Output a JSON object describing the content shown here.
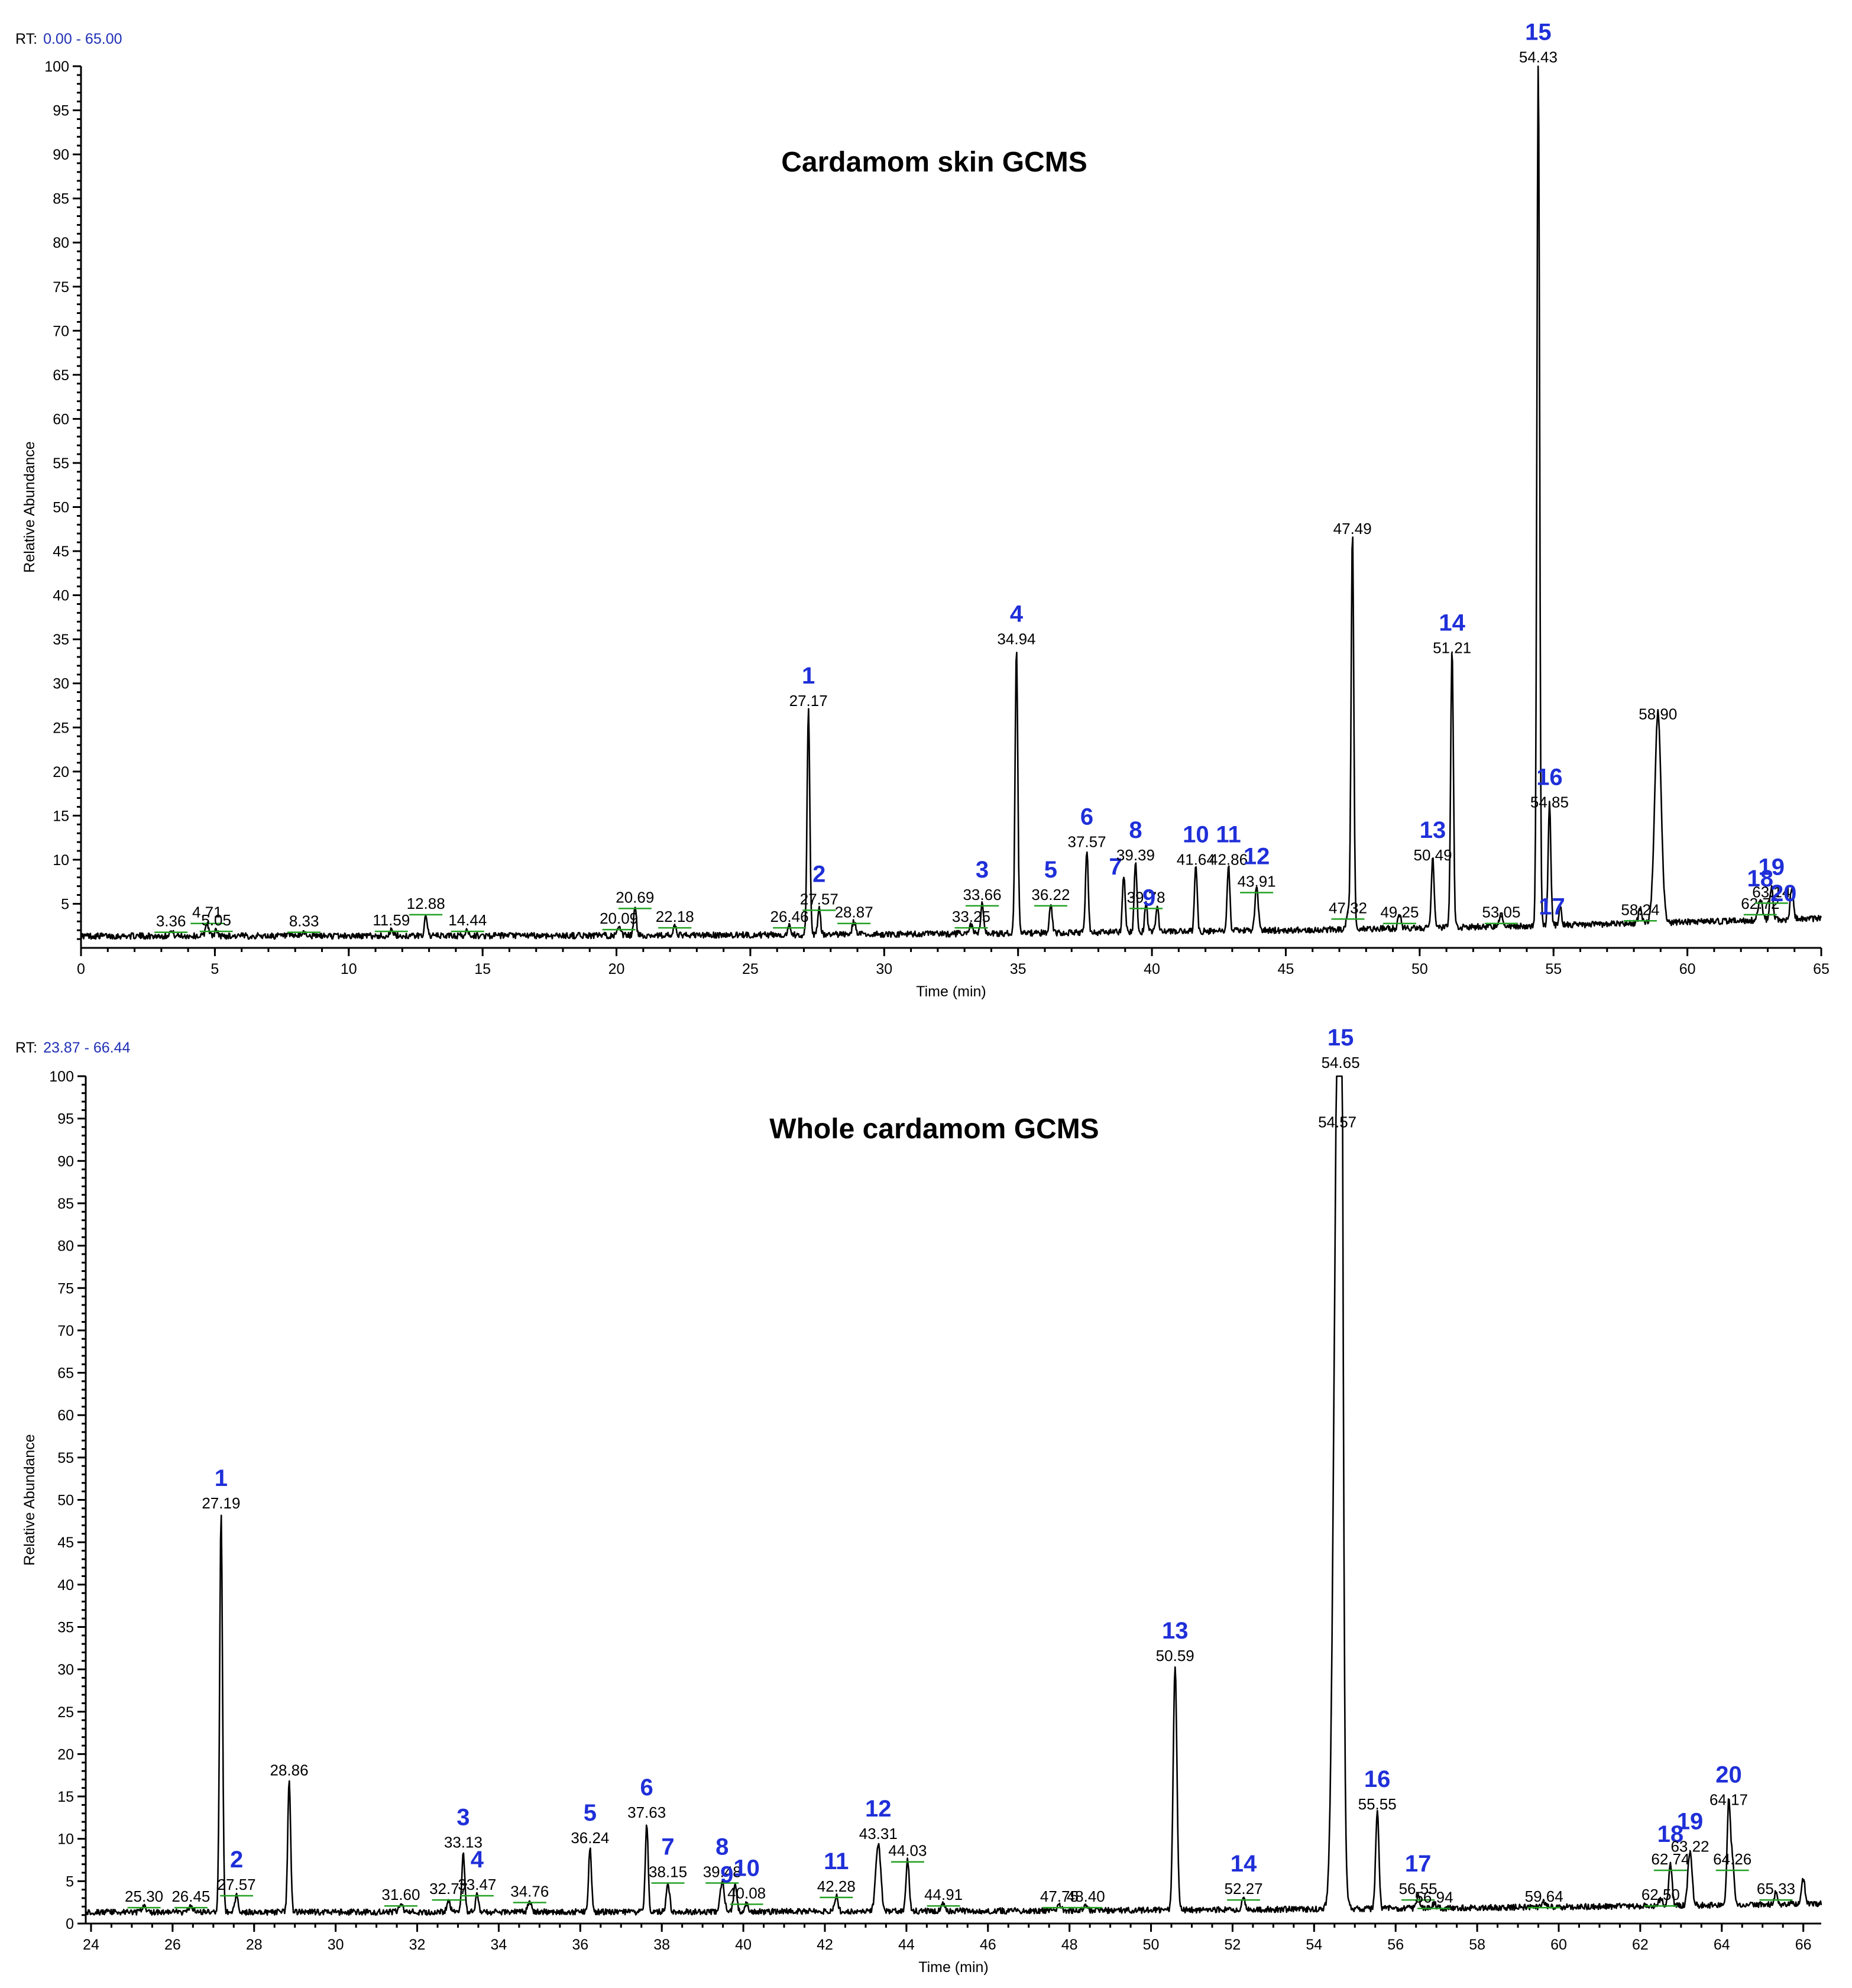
{
  "chart_data": [
    {
      "type": "line",
      "rt_label": "RT:",
      "rt_range": "0.00 - 65.00",
      "title": "Cardamom skin GCMS",
      "xlabel": "Time (min)",
      "ylabel": "Relative Abundance",
      "xlim": [
        0,
        65
      ],
      "ylim": [
        0,
        100
      ],
      "xticks": [
        "0",
        "5",
        "10",
        "15",
        "20",
        "25",
        "30",
        "35",
        "40",
        "45",
        "50",
        "55",
        "60",
        "65"
      ],
      "yticks": [
        "5",
        "10",
        "15",
        "20",
        "25",
        "30",
        "35",
        "40",
        "45",
        "50",
        "55",
        "60",
        "65",
        "70",
        "75",
        "80",
        "85",
        "90",
        "95",
        "100"
      ],
      "baseline": 1,
      "tail": 3.0,
      "peaks": [
        {
          "rt": 3.36,
          "label": "3.36",
          "h": 0.5,
          "w": 0.08,
          "num": ""
        },
        {
          "rt": 4.71,
          "label": "4.71",
          "h": 1.5,
          "w": 0.06,
          "num": ""
        },
        {
          "rt": 5.05,
          "label": "5.05",
          "h": 0.6,
          "w": 0.06,
          "num": ""
        },
        {
          "rt": 8.33,
          "label": "8.33",
          "h": 0.5,
          "w": 0.06,
          "num": ""
        },
        {
          "rt": 11.59,
          "label": "11.59",
          "h": 0.6,
          "w": 0.06,
          "num": ""
        },
        {
          "rt": 12.88,
          "label": "12.88",
          "h": 2.5,
          "w": 0.05,
          "num": ""
        },
        {
          "rt": 14.44,
          "label": "14.44",
          "h": 0.6,
          "w": 0.06,
          "num": ""
        },
        {
          "rt": 20.09,
          "label": "20.09",
          "h": 0.8,
          "w": 0.06,
          "num": ""
        },
        {
          "rt": 20.69,
          "label": "20.69",
          "h": 3.2,
          "w": 0.05,
          "num": ""
        },
        {
          "rt": 22.18,
          "label": "22.18",
          "h": 1.0,
          "w": 0.05,
          "num": ""
        },
        {
          "rt": 26.46,
          "label": "26.46",
          "h": 1.0,
          "w": 0.06,
          "num": ""
        },
        {
          "rt": 27.17,
          "label": "27.17",
          "h": 25.5,
          "w": 0.05,
          "num": "1"
        },
        {
          "rt": 27.57,
          "label": "27.57",
          "h": 3.0,
          "w": 0.05,
          "num": "2"
        },
        {
          "rt": 28.87,
          "label": "28.87",
          "h": 1.5,
          "w": 0.06,
          "num": ""
        },
        {
          "rt": 33.25,
          "label": "33.25",
          "h": 1.0,
          "w": 0.06,
          "num": ""
        },
        {
          "rt": 33.66,
          "label": "33.66",
          "h": 3.5,
          "w": 0.05,
          "num": "3"
        },
        {
          "rt": 34.94,
          "label": "34.94",
          "h": 32.5,
          "w": 0.05,
          "num": "4"
        },
        {
          "rt": 36.22,
          "label": "36.22",
          "h": 3.5,
          "w": 0.05,
          "num": "5"
        },
        {
          "rt": 37.57,
          "label": "37.57",
          "h": 9.5,
          "w": 0.05,
          "num": "6"
        },
        {
          "rt": 38.95,
          "label": "",
          "h": 6.5,
          "w": 0.05,
          "num": "7"
        },
        {
          "rt": 39.39,
          "label": "39.39",
          "h": 8.0,
          "w": 0.05,
          "num": "8"
        },
        {
          "rt": 39.78,
          "label": "39.78",
          "h": 3.2,
          "w": 0.05,
          "num": ""
        },
        {
          "rt": 40.2,
          "label": "",
          "h": 3.0,
          "w": 0.05,
          "num": "9"
        },
        {
          "rt": 41.64,
          "label": "41.64",
          "h": 7.5,
          "w": 0.05,
          "num": "10"
        },
        {
          "rt": 42.86,
          "label": "42.86",
          "h": 7.5,
          "w": 0.05,
          "num": "11"
        },
        {
          "rt": 43.91,
          "label": "43.91",
          "h": 5.0,
          "w": 0.06,
          "num": "12"
        },
        {
          "rt": 47.32,
          "label": "47.32",
          "h": 2.0,
          "w": 0.06,
          "num": ""
        },
        {
          "rt": 47.49,
          "label": "47.49",
          "h": 45.0,
          "w": 0.05,
          "num": ""
        },
        {
          "rt": 49.25,
          "label": "49.25",
          "h": 1.5,
          "w": 0.06,
          "num": ""
        },
        {
          "rt": 50.49,
          "label": "50.49",
          "h": 8.0,
          "w": 0.05,
          "num": "13"
        },
        {
          "rt": 51.21,
          "label": "51.21",
          "h": 31.5,
          "w": 0.05,
          "num": "14"
        },
        {
          "rt": 53.05,
          "label": "53.05",
          "h": 1.5,
          "w": 0.06,
          "num": ""
        },
        {
          "rt": 54.43,
          "label": "54.43",
          "h": 98.5,
          "w": 0.05,
          "num": "15"
        },
        {
          "rt": 54.85,
          "label": "54.85",
          "h": 14.0,
          "w": 0.05,
          "num": "16"
        },
        {
          "rt": 55.25,
          "label": "",
          "h": 2.0,
          "w": 0.05,
          "num": "17"
        },
        {
          "rt": 58.24,
          "label": "58.24",
          "h": 1.8,
          "w": 0.06,
          "num": ""
        },
        {
          "rt": 58.9,
          "label": "58.90",
          "h": 24.0,
          "w": 0.12,
          "num": ""
        },
        {
          "rt": 62.72,
          "label": "62.72",
          "h": 2.5,
          "w": 0.08,
          "num": "18"
        },
        {
          "rt": 63.14,
          "label": "63.14",
          "h": 3.8,
          "w": 0.06,
          "num": "19"
        },
        {
          "rt": 63.9,
          "label": "",
          "h": 3.5,
          "w": 0.06,
          "num": "20"
        }
      ]
    },
    {
      "type": "line",
      "rt_label": "RT:",
      "rt_range": "23.87 - 66.44",
      "title": "Whole cardamom GCMS",
      "xlabel": "Time (min)",
      "ylabel": "Relative Abundance",
      "xlim": [
        23.87,
        66.44
      ],
      "ylim": [
        0,
        100
      ],
      "xticks": [
        "24",
        "26",
        "28",
        "30",
        "32",
        "34",
        "36",
        "38",
        "40",
        "42",
        "44",
        "46",
        "48",
        "50",
        "52",
        "54",
        "56",
        "58",
        "60",
        "62",
        "64",
        "66"
      ],
      "yticks": [
        "0",
        "5",
        "10",
        "15",
        "20",
        "25",
        "30",
        "35",
        "40",
        "45",
        "50",
        "55",
        "60",
        "65",
        "70",
        "75",
        "80",
        "85",
        "90",
        "95",
        "100"
      ],
      "baseline": 1,
      "tail": 2.0,
      "peaks": [
        {
          "rt": 25.3,
          "label": "25.30",
          "h": 0.6,
          "w": 0.05,
          "num": ""
        },
        {
          "rt": 26.45,
          "label": "26.45",
          "h": 0.6,
          "w": 0.05,
          "num": ""
        },
        {
          "rt": 27.19,
          "label": "27.19",
          "h": 47.0,
          "w": 0.035,
          "num": "1"
        },
        {
          "rt": 27.57,
          "label": "27.57",
          "h": 2.0,
          "w": 0.04,
          "num": "2"
        },
        {
          "rt": 28.86,
          "label": "28.86",
          "h": 15.5,
          "w": 0.035,
          "num": ""
        },
        {
          "rt": 31.6,
          "label": "31.60",
          "h": 0.8,
          "w": 0.05,
          "num": ""
        },
        {
          "rt": 32.77,
          "label": "32.77",
          "h": 1.5,
          "w": 0.04,
          "num": ""
        },
        {
          "rt": 33.13,
          "label": "33.13",
          "h": 7.0,
          "w": 0.035,
          "num": "3"
        },
        {
          "rt": 33.47,
          "label": "33.47",
          "h": 2.0,
          "w": 0.04,
          "num": "4"
        },
        {
          "rt": 34.76,
          "label": "34.76",
          "h": 1.2,
          "w": 0.04,
          "num": ""
        },
        {
          "rt": 36.24,
          "label": "36.24",
          "h": 7.5,
          "w": 0.035,
          "num": "5"
        },
        {
          "rt": 37.63,
          "label": "37.63",
          "h": 10.5,
          "w": 0.035,
          "num": "6"
        },
        {
          "rt": 38.15,
          "label": "38.15",
          "h": 3.5,
          "w": 0.04,
          "num": "7"
        },
        {
          "rt": 39.48,
          "label": "39.48",
          "h": 3.5,
          "w": 0.05,
          "num": "8"
        },
        {
          "rt": 39.8,
          "label": "",
          "h": 3.0,
          "w": 0.04,
          "num": "9"
        },
        {
          "rt": 40.08,
          "label": "40.08",
          "h": 1.0,
          "w": 0.04,
          "num": "10"
        },
        {
          "rt": 42.28,
          "label": "42.28",
          "h": 1.8,
          "w": 0.04,
          "num": "11"
        },
        {
          "rt": 43.31,
          "label": "43.31",
          "h": 8.0,
          "w": 0.06,
          "num": "12"
        },
        {
          "rt": 44.03,
          "label": "44.03",
          "h": 6.0,
          "w": 0.04,
          "num": ""
        },
        {
          "rt": 44.91,
          "label": "44.91",
          "h": 0.8,
          "w": 0.05,
          "num": ""
        },
        {
          "rt": 47.75,
          "label": "47.75",
          "h": 0.6,
          "w": 0.05,
          "num": ""
        },
        {
          "rt": 48.4,
          "label": "48.40",
          "h": 0.6,
          "w": 0.05,
          "num": ""
        },
        {
          "rt": 50.59,
          "label": "50.59",
          "h": 29.0,
          "w": 0.045,
          "num": "13"
        },
        {
          "rt": 52.27,
          "label": "52.27",
          "h": 1.5,
          "w": 0.04,
          "num": "14"
        },
        {
          "rt": 54.57,
          "label": "54.57",
          "h": 92.0,
          "w": 0.09,
          "num": ""
        },
        {
          "rt": 54.65,
          "label": "54.65",
          "h": 99.0,
          "w": 0.05,
          "num": "15"
        },
        {
          "rt": 55.55,
          "label": "55.55",
          "h": 11.5,
          "w": 0.04,
          "num": "16"
        },
        {
          "rt": 56.55,
          "label": "56.55",
          "h": 1.5,
          "w": 0.04,
          "num": "17"
        },
        {
          "rt": 56.94,
          "label": "56.94",
          "h": 0.5,
          "w": 0.05,
          "num": ""
        },
        {
          "rt": 59.64,
          "label": "59.64",
          "h": 0.6,
          "w": 0.05,
          "num": ""
        },
        {
          "rt": 62.5,
          "label": "62.50",
          "h": 0.8,
          "w": 0.05,
          "num": ""
        },
        {
          "rt": 62.74,
          "label": "62.74",
          "h": 5.0,
          "w": 0.04,
          "num": "18"
        },
        {
          "rt": 63.22,
          "label": "63.22",
          "h": 6.5,
          "w": 0.05,
          "num": "19"
        },
        {
          "rt": 64.17,
          "label": "64.17",
          "h": 12.0,
          "w": 0.04,
          "num": "20"
        },
        {
          "rt": 64.26,
          "label": "64.26",
          "h": 5.0,
          "w": 0.04,
          "num": ""
        },
        {
          "rt": 65.33,
          "label": "65.33",
          "h": 1.5,
          "w": 0.04,
          "num": ""
        },
        {
          "rt": 66.0,
          "label": "",
          "h": 3.0,
          "w": 0.04,
          "num": ""
        }
      ]
    }
  ]
}
